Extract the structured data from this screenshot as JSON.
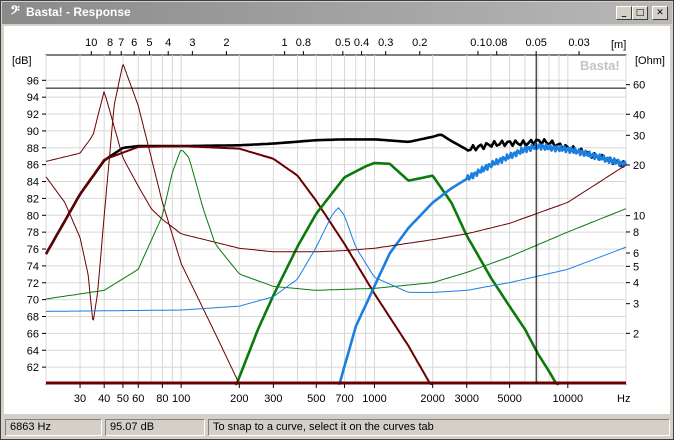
{
  "window": {
    "title": "Basta! - Response",
    "icon": "music-note-icon",
    "buttons": {
      "minimize": "_",
      "maximize": "□",
      "close": "✕"
    }
  },
  "plot": {
    "watermark": "Basta!",
    "left_unit": "[dB]",
    "right_unit": "[Ohm]",
    "top_unit": "[m]",
    "bottom_unit": "Hz",
    "db_ticks": [
      "96",
      "94",
      "92",
      "90",
      "88",
      "86",
      "84",
      "82",
      "80",
      "78",
      "76",
      "74",
      "72",
      "70",
      "68",
      "66",
      "64",
      "62"
    ],
    "ohm_ticks": [
      "60",
      "40",
      "30",
      "20",
      "10",
      "8",
      "6",
      "5",
      "4",
      "3",
      "2"
    ],
    "hz_ticks": [
      "30",
      "40",
      "50",
      "60",
      "80",
      "100",
      "200",
      "300",
      "500",
      "700",
      "1000",
      "2000",
      "3000",
      "5000",
      "10000"
    ],
    "m_ticks": [
      "10",
      "8",
      "7",
      "6",
      "5",
      "4",
      "3",
      "2",
      "1",
      "0.8",
      "0.5",
      "0.4",
      "0.3",
      "0.2",
      "0.1",
      "0.08",
      "0.05",
      "0.03"
    ],
    "colors": {
      "sum": "#000000",
      "woofer": "#6b0000",
      "mid": "#0b7a0b",
      "tweeter": "#1a7fe0",
      "grid": "#d8d8d8",
      "cursor": "#000000"
    }
  },
  "chart_data": {
    "type": "line",
    "xlabel": "Hz",
    "ylabel": "[dB]",
    "y2label": "[Ohm]",
    "x2label": "[m]",
    "xscale": "log",
    "y2scale": "log",
    "xlim": [
      20,
      20000
    ],
    "ylim": [
      60,
      99
    ],
    "y2lim": [
      1,
      90
    ],
    "cursor": {
      "x": 6863,
      "y": 95.07
    },
    "series": [
      {
        "color": "#000000",
        "role": "summed response (dB)",
        "x": [
          20,
          30,
          40,
          50,
          60,
          80,
          100,
          200,
          300,
          500,
          700,
          1000,
          1500,
          2000,
          2200,
          2500,
          3000,
          4000,
          5000,
          6000,
          7000,
          8000,
          10000,
          12000,
          15000,
          20000
        ],
        "y": [
          75.4,
          82.5,
          86.5,
          88.0,
          88.2,
          88.2,
          88.2,
          88.3,
          88.5,
          88.9,
          89.0,
          89.0,
          88.7,
          89.3,
          89.6,
          88.8,
          87.8,
          88.4,
          88.6,
          88.5,
          88.8,
          88.6,
          88.0,
          87.5,
          86.8,
          86.0
        ]
      },
      {
        "color": "#6b0000",
        "role": "woofer response (dB)",
        "x": [
          20,
          30,
          40,
          60,
          100,
          200,
          300,
          400,
          500,
          700,
          1000,
          1500,
          2000
        ],
        "y": [
          75.4,
          82.5,
          86.6,
          88.1,
          88.2,
          87.9,
          86.7,
          84.7,
          81.7,
          76.6,
          70.7,
          64.5,
          59.5
        ]
      },
      {
        "color": "#0b7a0b",
        "role": "mid response (dB)",
        "x": [
          190,
          250,
          300,
          400,
          500,
          700,
          900,
          1000,
          1200,
          1500,
          2000,
          2500,
          3000,
          4000,
          5000,
          6000,
          7000,
          8000,
          9000
        ],
        "y": [
          59.5,
          66.5,
          70.5,
          76.3,
          80.2,
          84.5,
          85.8,
          86.2,
          86.1,
          84.1,
          84.7,
          81.5,
          77.6,
          72.6,
          69.2,
          66.5,
          63.6,
          61.5,
          59.5
        ]
      },
      {
        "color": "#1a7fe0",
        "role": "tweeter response (dB)",
        "x": [
          650,
          800,
          1000,
          1200,
          1500,
          2000,
          2500,
          3000,
          4000,
          5000,
          6000,
          7000,
          8000,
          10000,
          12000,
          15000,
          20000
        ],
        "y": [
          59.5,
          66.8,
          71.6,
          75.5,
          78.5,
          81.5,
          83.2,
          84.3,
          86.0,
          87.0,
          87.8,
          88.2,
          88.0,
          87.8,
          87.4,
          86.8,
          86.0
        ]
      },
      {
        "color": "#6b0000",
        "role": "woofer impedance (Ohm)",
        "x": [
          20,
          30,
          35,
          40,
          50,
          60,
          70,
          80,
          100,
          200,
          300,
          500,
          700,
          1000,
          2000,
          3000,
          5000,
          10000,
          20000
        ],
        "y": [
          21,
          23.5,
          30,
          55,
          22,
          15,
          11,
          9.5,
          7.8,
          6.4,
          6.1,
          6.1,
          6.2,
          6.4,
          7.2,
          7.8,
          9,
          12,
          20
        ]
      },
      {
        "color": "#6b0000",
        "role": "woofer phase-like curve (Ohm scale)",
        "x": [
          20,
          25,
          30,
          33,
          35,
          37,
          40,
          45,
          50,
          60,
          80,
          100,
          150,
          200
        ],
        "y": [
          17,
          12,
          7.4,
          4.5,
          2.3,
          3.5,
          10,
          45,
          80,
          45,
          12,
          5.2,
          2.0,
          1.0
        ]
      },
      {
        "color": "#0b7a0b",
        "role": "mid impedance (Ohm)",
        "x": [
          20,
          40,
          60,
          80,
          90,
          100,
          110,
          130,
          150,
          200,
          300,
          500,
          1000,
          2000,
          3000,
          5000,
          10000,
          20000
        ],
        "y": [
          3.2,
          3.6,
          4.8,
          10,
          18,
          25,
          22,
          11,
          6.8,
          4.5,
          3.8,
          3.6,
          3.7,
          4.0,
          4.6,
          5.7,
          8.0,
          11
        ]
      },
      {
        "color": "#1a7fe0",
        "role": "tweeter impedance (Ohm)",
        "x": [
          20,
          100,
          200,
          300,
          400,
          500,
          600,
          650,
          700,
          800,
          1000,
          1500,
          2000,
          3000,
          5000,
          10000,
          20000
        ],
        "y": [
          2.7,
          2.75,
          2.9,
          3.3,
          4.2,
          6.5,
          10,
          11.2,
          10,
          6.5,
          4.3,
          3.5,
          3.5,
          3.6,
          4.0,
          4.8,
          6.5
        ]
      }
    ]
  },
  "status": {
    "frequency": "6863 Hz",
    "level": "95.07 dB",
    "hint": "To snap to a curve, select it on the curves tab"
  }
}
